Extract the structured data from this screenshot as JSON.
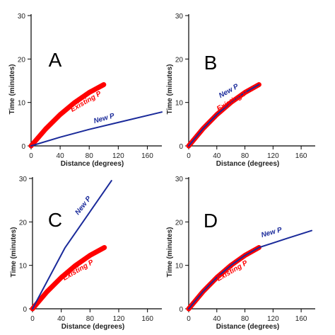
{
  "chart_data": [
    {
      "type": "line",
      "panel_label": "A",
      "xlabel": "Distance (degrees)",
      "ylabel": "Time (minutes)",
      "xlim": [
        0,
        180
      ],
      "ylim": [
        0,
        30
      ],
      "xticks": [
        0,
        40,
        80,
        120,
        160
      ],
      "yticks": [
        0,
        10,
        20,
        30
      ],
      "series": [
        {
          "name": "Existing P",
          "color": "#ff0000",
          "x": [
            0,
            20,
            40,
            60,
            80,
            100
          ],
          "y": [
            0,
            3.9,
            7.2,
            10.0,
            12.3,
            14.1
          ]
        },
        {
          "name": "New P",
          "color": "#1a2a9a",
          "x": [
            0,
            40,
            80,
            120,
            180
          ],
          "y": [
            0,
            2.0,
            3.8,
            5.4,
            7.8
          ]
        }
      ]
    },
    {
      "type": "line",
      "panel_label": "B",
      "xlabel": "Distance (degrees)",
      "ylabel": "Time (minutes)",
      "xlim": [
        0,
        180
      ],
      "ylim": [
        0,
        30
      ],
      "xticks": [
        0,
        40,
        80,
        120,
        160
      ],
      "yticks": [
        0,
        10,
        20,
        30
      ],
      "series": [
        {
          "name": "Existing P",
          "color": "#ff0000",
          "x": [
            0,
            20,
            40,
            60,
            80,
            100
          ],
          "y": [
            0,
            3.9,
            7.2,
            10.0,
            12.3,
            14.1
          ]
        },
        {
          "name": "New P",
          "color": "#1a2a9a",
          "x": [
            0,
            20,
            40,
            60,
            80,
            100
          ],
          "y": [
            0,
            3.9,
            7.2,
            10.0,
            12.3,
            14.1
          ]
        }
      ]
    },
    {
      "type": "line",
      "panel_label": "C",
      "xlabel": "Distance (degrees)",
      "ylabel": "Time (minutes)",
      "xlim": [
        0,
        180
      ],
      "ylim": [
        0,
        30
      ],
      "xticks": [
        0,
        40,
        80,
        120,
        160
      ],
      "yticks": [
        0,
        10,
        20,
        30
      ],
      "series": [
        {
          "name": "Existing P",
          "color": "#ff0000",
          "x": [
            0,
            20,
            40,
            60,
            80,
            100
          ],
          "y": [
            0,
            3.9,
            7.2,
            10.0,
            12.3,
            14.1
          ]
        },
        {
          "name": "New P",
          "color": "#1a2a9a",
          "x": [
            0,
            45,
            110
          ],
          "y": [
            0,
            14.0,
            29.5
          ]
        }
      ]
    },
    {
      "type": "line",
      "panel_label": "D",
      "xlabel": "Distance (degrees)",
      "ylabel": "Time (minutes)",
      "xlim": [
        0,
        180
      ],
      "ylim": [
        0,
        30
      ],
      "xticks": [
        0,
        40,
        80,
        120,
        160
      ],
      "yticks": [
        0,
        10,
        20,
        30
      ],
      "series": [
        {
          "name": "Existing P",
          "color": "#ff0000",
          "x": [
            0,
            20,
            40,
            60,
            80,
            100
          ],
          "y": [
            0,
            3.9,
            7.2,
            10.0,
            12.3,
            14.1
          ]
        },
        {
          "name": "New P",
          "color": "#1a2a9a",
          "x": [
            0,
            20,
            40,
            60,
            80,
            100,
            140,
            175
          ],
          "y": [
            0,
            3.9,
            7.2,
            10.0,
            12.3,
            14.1,
            16.2,
            18.0
          ]
        }
      ]
    }
  ]
}
